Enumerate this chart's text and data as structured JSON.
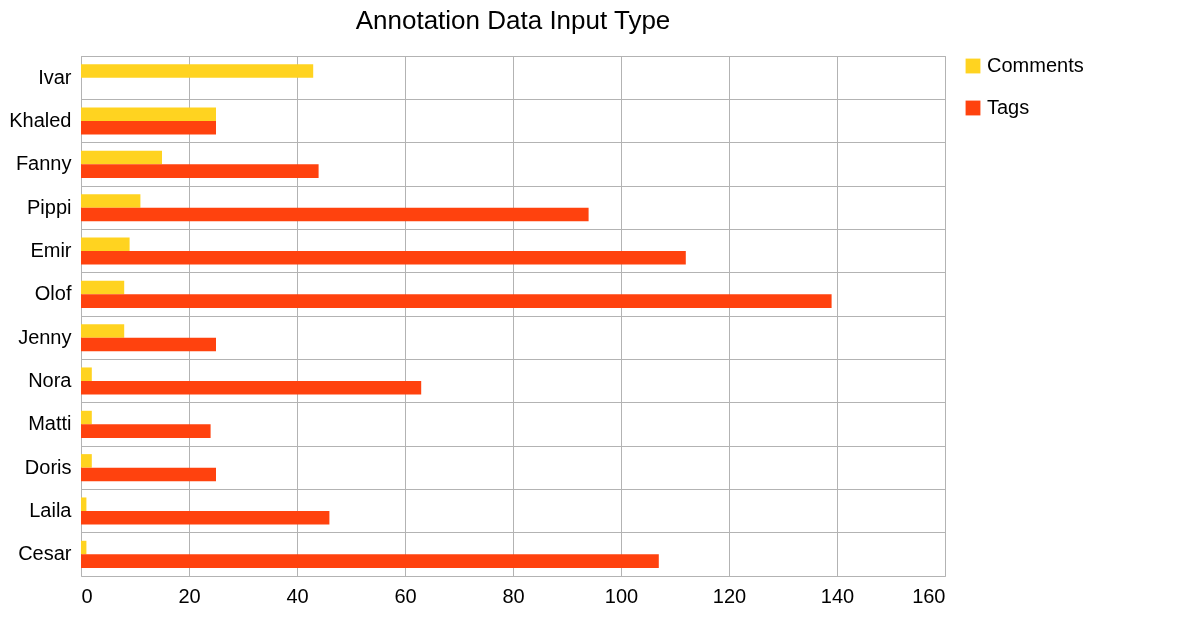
{
  "chart_data": {
    "type": "bar",
    "title": "Annotation Data Input Type",
    "orientation": "horizontal",
    "categories": [
      "Ivar",
      "Khaled",
      "Fanny",
      "Pippi",
      "Emir",
      "Olof",
      "Jenny",
      "Nora",
      "Matti",
      "Doris",
      "Laila",
      "Cesar"
    ],
    "series": [
      {
        "name": "Comments",
        "color": "#ffd320",
        "values": [
          43,
          25,
          15,
          11,
          9,
          8,
          8,
          2,
          2,
          2,
          1,
          1
        ]
      },
      {
        "name": "Tags",
        "color": "#ff420e",
        "values": [
          0,
          25,
          44,
          94,
          112,
          139,
          25,
          63,
          24,
          25,
          46,
          107
        ]
      }
    ],
    "xlim": [
      0,
      160
    ],
    "xticks": [
      0,
      20,
      40,
      60,
      80,
      100,
      120,
      140,
      160
    ],
    "grid": true,
    "legend": "right"
  }
}
